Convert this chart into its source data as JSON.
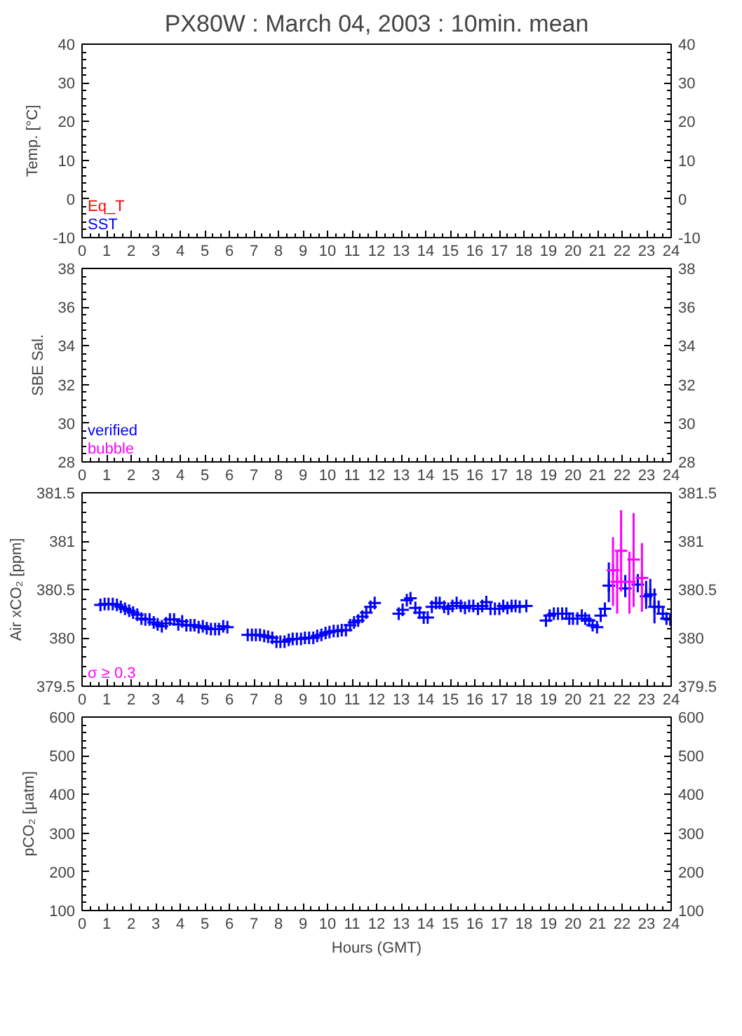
{
  "chart_data": [
    {
      "type": "scatter",
      "title": "PX80W : March 04, 2003 : 10min. mean",
      "ylabel": "Temp. [°C]",
      "xlim": [
        0,
        24
      ],
      "xticks": [
        0,
        1,
        2,
        3,
        4,
        5,
        6,
        7,
        8,
        9,
        10,
        11,
        12,
        13,
        14,
        15,
        16,
        17,
        18,
        19,
        20,
        21,
        22,
        23,
        24
      ],
      "ylim": [
        -10,
        40
      ],
      "yticks": [
        -10,
        0,
        10,
        20,
        30,
        40
      ],
      "y2lim": [
        -10,
        40
      ],
      "y2ticks": [
        -10,
        0,
        10,
        20,
        30,
        40
      ],
      "annotations": [
        "Eq_T",
        "SST"
      ]
    },
    {
      "type": "scatter",
      "ylabel": "SBE Sal.",
      "xlim": [
        0,
        24
      ],
      "xticks": [
        0,
        1,
        2,
        3,
        4,
        5,
        6,
        7,
        8,
        9,
        10,
        11,
        12,
        13,
        14,
        15,
        16,
        17,
        18,
        19,
        20,
        21,
        22,
        23,
        24
      ],
      "ylim": [
        28,
        38
      ],
      "yticks": [
        28,
        30,
        32,
        34,
        36,
        38
      ],
      "y2lim": [
        28,
        38
      ],
      "y2ticks": [
        28,
        30,
        32,
        34,
        36,
        38
      ],
      "annotations": [
        "verified",
        "bubble"
      ]
    },
    {
      "type": "scatter",
      "ylabel": "Air xCO₂ [ppm]",
      "xlim": [
        0,
        24
      ],
      "xticks": [
        0,
        1,
        2,
        3,
        4,
        5,
        6,
        7,
        8,
        9,
        10,
        11,
        12,
        13,
        14,
        15,
        16,
        17,
        18,
        19,
        20,
        21,
        22,
        23,
        24
      ],
      "ylim": [
        379.5,
        381.5
      ],
      "yticks": [
        379.5,
        380,
        380.5,
        381,
        381.5
      ],
      "y2lim": [
        379.5,
        381.5
      ],
      "y2ticks": [
        379.5,
        380,
        380.5,
        381,
        381.5
      ],
      "marker": "cross",
      "series": [
        {
          "color": "#0000ff",
          "x": [
            0.75,
            0.92,
            1.08,
            1.25,
            1.42,
            1.58,
            1.75,
            1.92,
            2.08,
            2.25,
            2.42,
            2.58,
            2.75,
            2.92,
            3.08,
            3.25,
            3.42,
            3.58,
            3.75,
            3.92,
            4.08,
            4.25,
            4.42,
            4.58,
            4.75,
            4.92,
            5.08,
            5.25,
            5.42,
            5.58,
            5.75,
            5.92,
            6.75,
            6.92,
            7.08,
            7.25,
            7.42,
            7.58,
            7.75,
            7.92,
            8.08,
            8.25,
            8.42,
            8.58,
            8.75,
            8.92,
            9.08,
            9.25,
            9.42,
            9.58,
            9.75,
            9.92,
            10.08,
            10.25,
            10.42,
            10.58,
            10.75,
            10.92,
            11.08,
            11.25,
            11.42,
            11.58,
            11.75,
            11.92,
            12.9,
            13.06,
            13.23,
            13.38,
            13.58,
            13.75,
            13.92,
            14.08,
            14.25,
            14.42,
            14.57,
            14.75,
            14.92,
            15.09,
            15.26,
            15.43,
            15.6,
            15.77,
            15.94,
            16.13,
            16.3,
            16.47,
            16.64,
            16.82,
            17.0,
            17.16,
            17.33,
            17.5,
            17.66,
            17.83,
            18.1,
            18.9,
            19.05,
            19.22,
            19.39,
            19.56,
            19.73,
            19.85,
            20.0,
            20.18,
            20.36,
            20.5,
            20.66,
            20.8,
            20.98,
            21.13,
            21.3,
            21.46,
            22.13,
            22.64,
            22.98,
            23.15,
            23.32,
            23.49,
            23.66,
            23.81,
            23.96
          ],
          "values": [
            380.34,
            380.35,
            380.35,
            380.35,
            380.34,
            380.32,
            380.3,
            380.28,
            380.26,
            380.24,
            380.2,
            380.19,
            380.19,
            380.16,
            380.14,
            380.12,
            380.15,
            380.19,
            380.19,
            380.14,
            380.17,
            380.13,
            380.13,
            380.13,
            380.11,
            380.12,
            380.1,
            380.09,
            380.09,
            380.09,
            380.12,
            380.11,
            380.03,
            380.03,
            380.03,
            380.03,
            380.02,
            380.01,
            380.0,
            379.96,
            379.96,
            379.96,
            379.98,
            379.99,
            379.99,
            379.99,
            380.0,
            380.0,
            380.0,
            380.02,
            380.03,
            380.05,
            380.06,
            380.07,
            380.07,
            380.08,
            380.08,
            380.13,
            380.16,
            380.18,
            380.22,
            380.26,
            380.32,
            380.36,
            380.25,
            380.29,
            380.39,
            380.41,
            380.31,
            380.26,
            380.21,
            380.21,
            380.32,
            380.36,
            380.36,
            380.32,
            380.3,
            380.33,
            380.36,
            380.33,
            380.31,
            380.33,
            380.33,
            380.3,
            380.33,
            380.37,
            380.3,
            380.3,
            380.3,
            380.33,
            380.31,
            380.33,
            380.33,
            380.32,
            380.33,
            380.18,
            380.23,
            380.25,
            380.25,
            380.25,
            380.25,
            380.2,
            380.2,
            380.2,
            380.23,
            380.2,
            380.18,
            380.13,
            380.11,
            380.23,
            380.3,
            380.54,
            380.51,
            380.55,
            380.43,
            380.45,
            380.32,
            380.32,
            380.25,
            380.2,
            380.19
          ],
          "errors": [
            null,
            null,
            null,
            null,
            null,
            null,
            null,
            null,
            null,
            null,
            null,
            null,
            null,
            null,
            null,
            null,
            null,
            null,
            null,
            null,
            null,
            null,
            null,
            null,
            null,
            null,
            null,
            null,
            null,
            null,
            null,
            null,
            null,
            null,
            null,
            null,
            null,
            null,
            null,
            null,
            null,
            null,
            null,
            null,
            null,
            null,
            null,
            null,
            null,
            null,
            null,
            null,
            null,
            null,
            null,
            null,
            null,
            null,
            null,
            null,
            null,
            null,
            null,
            null,
            null,
            null,
            null,
            null,
            null,
            null,
            null,
            null,
            null,
            null,
            null,
            null,
            null,
            null,
            null,
            null,
            null,
            null,
            null,
            null,
            null,
            null,
            null,
            null,
            null,
            null,
            null,
            null,
            null,
            null,
            null,
            null,
            null,
            null,
            null,
            null,
            null,
            null,
            null,
            null,
            null,
            null,
            null,
            null,
            null,
            null,
            null,
            [
              380.37,
              380.78
            ],
            [
              380.42,
              380.65
            ],
            [
              380.47,
              380.66
            ],
            [
              380.3,
              380.59
            ],
            [
              380.33,
              380.61
            ],
            [
              380.15,
              380.51
            ],
            null,
            null,
            null,
            null
          ]
        },
        {
          "name": "σ ≥ 0.3",
          "color": "#ff00ff",
          "marker": "cross",
          "x": [
            21.63,
            21.8,
            21.96,
            22.3,
            22.47,
            22.81
          ],
          "values": [
            380.7,
            380.58,
            380.9,
            380.58,
            380.81,
            380.62
          ],
          "errors": [
            [
              380.33,
              381.04
            ],
            [
              380.25,
              380.89
            ],
            [
              380.48,
              381.32
            ],
            [
              380.25,
              380.89
            ],
            [
              380.32,
              381.29
            ],
            [
              380.27,
              380.98
            ]
          ]
        }
      ]
    },
    {
      "type": "scatter",
      "ylabel": "pCO₂ [μatm]",
      "xlabel": "Hours (GMT)",
      "xlim": [
        0,
        24
      ],
      "xticks": [
        0,
        1,
        2,
        3,
        4,
        5,
        6,
        7,
        8,
        9,
        10,
        11,
        12,
        13,
        14,
        15,
        16,
        17,
        18,
        19,
        20,
        21,
        22,
        23,
        24
      ],
      "ylim": [
        100,
        600
      ],
      "yticks": [
        100,
        200,
        300,
        400,
        500,
        600
      ],
      "y2lim": [
        100,
        600
      ],
      "y2ticks": [
        100,
        200,
        300,
        400,
        500,
        600
      ]
    }
  ]
}
